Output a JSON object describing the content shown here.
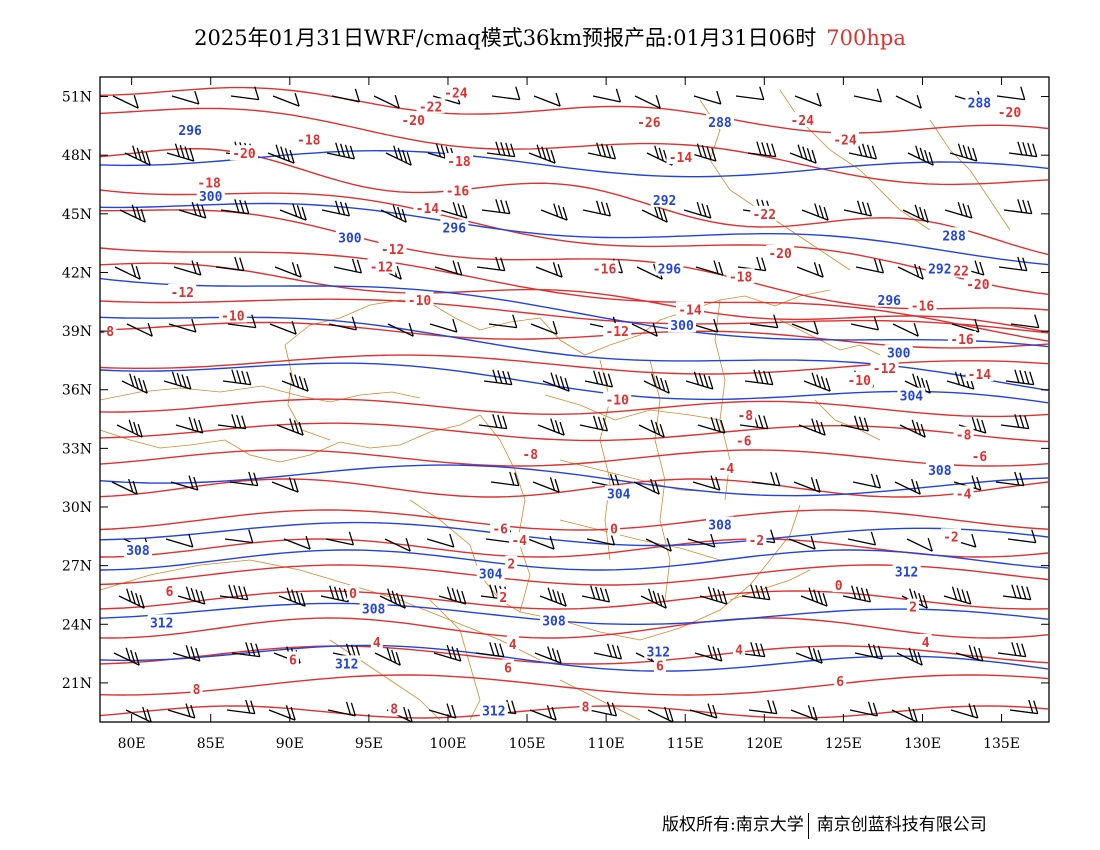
{
  "title": {
    "text": "2025年01月31日WRF/cmaq模式36km预报产品:01月31日06时",
    "level": "700hpa"
  },
  "footer": {
    "owner": "版权所有:南京大学",
    "company": "南京创蓝科技有限公司"
  },
  "colors": {
    "temperature": "#e03030",
    "height": "#2244dd",
    "border": "#d8892a",
    "barb": "#000000"
  },
  "map": {
    "lon_range": [
      78,
      138
    ],
    "lat_range": [
      19,
      52
    ],
    "lon_ticks": [
      "80E",
      "85E",
      "90E",
      "95E",
      "100E",
      "105E",
      "110E",
      "115E",
      "120E",
      "125E",
      "130E",
      "135E"
    ],
    "lat_ticks": [
      "51N",
      "48N",
      "45N",
      "42N",
      "39N",
      "36N",
      "33N",
      "30N",
      "27N",
      "24N",
      "21N"
    ]
  },
  "temperature_labels": [
    {
      "text": "-24",
      "lon": 100.5,
      "lat": 51.2
    },
    {
      "text": "-22",
      "lon": 98.9,
      "lat": 50.5
    },
    {
      "text": "-20",
      "lon": 97.8,
      "lat": 49.8
    },
    {
      "text": "-18",
      "lon": 91.2,
      "lat": 48.8
    },
    {
      "text": "-20",
      "lon": 87.1,
      "lat": 48.1
    },
    {
      "text": "-18",
      "lon": 84.9,
      "lat": 46.6
    },
    {
      "text": "-26",
      "lon": 112.7,
      "lat": 49.7
    },
    {
      "text": "-24",
      "lon": 122.4,
      "lat": 49.8
    },
    {
      "text": "-24",
      "lon": 125.1,
      "lat": 48.8
    },
    {
      "text": "-20",
      "lon": 135.5,
      "lat": 50.2
    },
    {
      "text": "-18",
      "lon": 100.7,
      "lat": 47.7
    },
    {
      "text": "-16",
      "lon": 100.6,
      "lat": 46.2
    },
    {
      "text": "-14",
      "lon": 114.7,
      "lat": 47.9
    },
    {
      "text": "-14",
      "lon": 98.7,
      "lat": 45.3
    },
    {
      "text": "-22",
      "lon": 120.0,
      "lat": 45.0
    },
    {
      "text": "-20",
      "lon": 121.0,
      "lat": 43.0
    },
    {
      "text": "-12",
      "lon": 96.5,
      "lat": 43.2
    },
    {
      "text": "-12",
      "lon": 95.8,
      "lat": 42.3
    },
    {
      "text": "-16",
      "lon": 109.9,
      "lat": 42.2
    },
    {
      "text": "-18",
      "lon": 118.5,
      "lat": 41.8
    },
    {
      "text": "-22",
      "lon": 132.2,
      "lat": 42.1
    },
    {
      "text": "-20",
      "lon": 133.5,
      "lat": 41.4
    },
    {
      "text": "-16",
      "lon": 130.0,
      "lat": 40.3
    },
    {
      "text": "-14",
      "lon": 115.3,
      "lat": 40.1
    },
    {
      "text": "-10",
      "lon": 98.2,
      "lat": 40.6
    },
    {
      "text": "-12",
      "lon": 83.2,
      "lat": 41.0
    },
    {
      "text": "-10",
      "lon": 86.4,
      "lat": 39.8
    },
    {
      "text": "-8",
      "lon": 78.4,
      "lat": 39.0
    },
    {
      "text": "-12",
      "lon": 110.7,
      "lat": 39.0
    },
    {
      "text": "-16",
      "lon": 132.5,
      "lat": 38.6
    },
    {
      "text": "-12",
      "lon": 127.6,
      "lat": 37.1
    },
    {
      "text": "-10",
      "lon": 126.0,
      "lat": 36.5
    },
    {
      "text": "-14",
      "lon": 133.6,
      "lat": 36.8
    },
    {
      "text": "-10",
      "lon": 110.7,
      "lat": 35.5
    },
    {
      "text": "-8",
      "lon": 118.8,
      "lat": 34.7
    },
    {
      "text": "-6",
      "lon": 118.7,
      "lat": 33.4
    },
    {
      "text": "-8",
      "lon": 132.6,
      "lat": 33.7
    },
    {
      "text": "-6",
      "lon": 133.6,
      "lat": 32.6
    },
    {
      "text": "-8",
      "lon": 105.2,
      "lat": 32.7
    },
    {
      "text": "-4",
      "lon": 117.6,
      "lat": 32.0
    },
    {
      "text": "-4",
      "lon": 132.6,
      "lat": 30.7
    },
    {
      "text": "-6",
      "lon": 103.3,
      "lat": 28.9
    },
    {
      "text": "-4",
      "lon": 104.5,
      "lat": 28.3
    },
    {
      "text": "0",
      "lon": 110.5,
      "lat": 28.9
    },
    {
      "text": "-2",
      "lon": 119.5,
      "lat": 28.3
    },
    {
      "text": "-2",
      "lon": 131.8,
      "lat": 28.5
    },
    {
      "text": "2",
      "lon": 104.0,
      "lat": 27.1
    },
    {
      "text": "0",
      "lon": 94.0,
      "lat": 25.6
    },
    {
      "text": "0",
      "lon": 124.7,
      "lat": 26.0
    },
    {
      "text": "2",
      "lon": 103.5,
      "lat": 25.4
    },
    {
      "text": "6",
      "lon": 82.4,
      "lat": 25.7
    },
    {
      "text": "2",
      "lon": 129.4,
      "lat": 24.9
    },
    {
      "text": "4",
      "lon": 95.5,
      "lat": 23.1
    },
    {
      "text": "4",
      "lon": 104.1,
      "lat": 23.0
    },
    {
      "text": "4",
      "lon": 130.2,
      "lat": 23.1
    },
    {
      "text": "4",
      "lon": 118.4,
      "lat": 22.7
    },
    {
      "text": "6",
      "lon": 90.2,
      "lat": 22.2
    },
    {
      "text": "6",
      "lon": 103.8,
      "lat": 21.8
    },
    {
      "text": "6",
      "lon": 113.4,
      "lat": 21.9
    },
    {
      "text": "6",
      "lon": 124.8,
      "lat": 21.1
    },
    {
      "text": "8",
      "lon": 84.1,
      "lat": 20.7
    },
    {
      "text": "8",
      "lon": 96.6,
      "lat": 19.7
    },
    {
      "text": "8",
      "lon": 108.7,
      "lat": 19.8
    }
  ],
  "height_labels": [
    {
      "text": "296",
      "lon": 83.7,
      "lat": 49.3
    },
    {
      "text": "300",
      "lon": 85.0,
      "lat": 45.9
    },
    {
      "text": "300",
      "lon": 93.8,
      "lat": 43.8
    },
    {
      "text": "296",
      "lon": 100.4,
      "lat": 44.3
    },
    {
      "text": "288",
      "lon": 117.2,
      "lat": 49.7
    },
    {
      "text": "288",
      "lon": 133.6,
      "lat": 50.7
    },
    {
      "text": "292",
      "lon": 113.7,
      "lat": 45.7
    },
    {
      "text": "288",
      "lon": 132.0,
      "lat": 43.9
    },
    {
      "text": "296",
      "lon": 114.0,
      "lat": 42.2
    },
    {
      "text": "292",
      "lon": 131.1,
      "lat": 42.2
    },
    {
      "text": "296",
      "lon": 127.9,
      "lat": 40.6
    },
    {
      "text": "300",
      "lon": 114.8,
      "lat": 39.3
    },
    {
      "text": "300",
      "lon": 128.5,
      "lat": 37.9
    },
    {
      "text": "304",
      "lon": 129.3,
      "lat": 35.7
    },
    {
      "text": "308",
      "lon": 131.1,
      "lat": 31.9
    },
    {
      "text": "304",
      "lon": 110.8,
      "lat": 30.7
    },
    {
      "text": "308",
      "lon": 117.2,
      "lat": 29.1
    },
    {
      "text": "308",
      "lon": 80.4,
      "lat": 27.8
    },
    {
      "text": "312",
      "lon": 129.0,
      "lat": 26.7
    },
    {
      "text": "304",
      "lon": 102.7,
      "lat": 26.6
    },
    {
      "text": "308",
      "lon": 95.3,
      "lat": 24.8
    },
    {
      "text": "308",
      "lon": 106.7,
      "lat": 24.2
    },
    {
      "text": "312",
      "lon": 81.9,
      "lat": 24.1
    },
    {
      "text": "312",
      "lon": 113.3,
      "lat": 22.6
    },
    {
      "text": "312",
      "lon": 93.6,
      "lat": 22.0
    },
    {
      "text": "312",
      "lon": 102.9,
      "lat": 19.6
    }
  ]
}
